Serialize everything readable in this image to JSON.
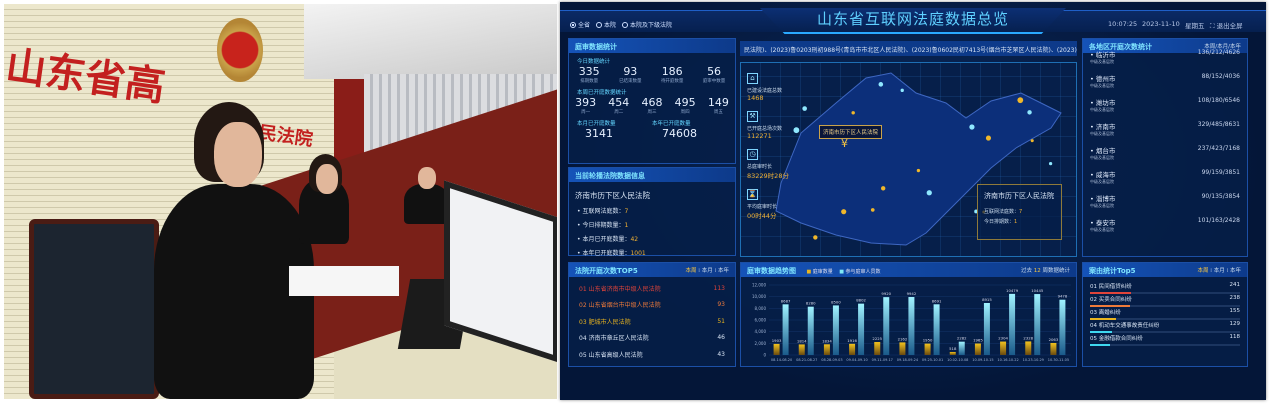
{
  "photo": {
    "wall_text_left": "山东省高",
    "wall_text_right": "民法院"
  },
  "header": {
    "title": "山东省互联网法庭数据总览",
    "scope_options": [
      {
        "label": "全省",
        "selected": true
      },
      {
        "label": "本院",
        "selected": false
      },
      {
        "label": "本院及下级法院",
        "selected": false
      }
    ],
    "time": "10:07:25",
    "date": "2023-11-10",
    "weekday": "星期五",
    "exit_fullscreen": "退出全屏"
  },
  "trial_stats": {
    "title": "庭审数据统计",
    "today_label": "今日数据统计",
    "today": [
      {
        "value": "335",
        "label": "排期数量"
      },
      {
        "value": "93",
        "label": "已结束数量"
      },
      {
        "value": "186",
        "label": "待开庭数量"
      },
      {
        "value": "56",
        "label": "庭审中数量"
      }
    ],
    "week_label": "本周已开庭数据统计",
    "week": [
      {
        "value": "393",
        "label": "周一"
      },
      {
        "value": "454",
        "label": "周二"
      },
      {
        "value": "468",
        "label": "周三"
      },
      {
        "value": "495",
        "label": "周四"
      },
      {
        "value": "149",
        "label": "周五"
      }
    ],
    "month_label": "本月已开庭数量",
    "month_value": "3141",
    "year_label": "本年已开庭数量",
    "year_value": "74608"
  },
  "court_info": {
    "title": "当前轮播法院数据信息",
    "court": "济南市历下区人民法院",
    "items": [
      {
        "label": "互联网法庭数：",
        "value": "7"
      },
      {
        "label": "今日排期数量：",
        "value": "1"
      },
      {
        "label": "本月已开庭数量：",
        "value": "42"
      },
      {
        "label": "本年已开庭数量：",
        "value": "1001"
      }
    ]
  },
  "court_top5": {
    "title": "法院开庭次数TOP5",
    "tabs": [
      "本周",
      "本月",
      "本年"
    ],
    "active_tab": "本周",
    "items": [
      {
        "rank": "01",
        "name": "山东省济南市中级人民法院",
        "value": "113",
        "color": "#e0443a"
      },
      {
        "rank": "02",
        "name": "山东省烟台市中级人民法院",
        "value": "93",
        "color": "#ee7a3a"
      },
      {
        "rank": "03",
        "name": "肥城市人民法院",
        "value": "51",
        "color": "#e8b420"
      },
      {
        "rank": "04",
        "name": "济南市章丘区人民法院",
        "value": "46",
        "color": "#d8e4f4"
      },
      {
        "rank": "05",
        "name": "山东省高级人民法院",
        "value": "43",
        "color": "#d8e4f4"
      }
    ]
  },
  "ticker": "民法院)、(2023)鲁0203刑初988号(青岛市市北区人民法院)、(2023)鲁0602民初7413号(烟台市芝罘区人民法院)、(2023)",
  "map": {
    "stats": [
      {
        "icon": "courthouse-icon",
        "label": "已建设法庭总数",
        "value": "1468"
      },
      {
        "icon": "gavel-icon",
        "label": "已开庭总场次数",
        "value": "112271"
      },
      {
        "icon": "clock-icon",
        "label": "总庭审时长",
        "value": "83229时28分"
      },
      {
        "icon": "hourglass-icon",
        "label": "平均庭审时长",
        "value": "00时44分"
      }
    ],
    "tooltip": "济南市历下区人民法院",
    "info": {
      "court": "济南市历下区人民法院",
      "items": [
        {
          "label": "互联网法庭数：",
          "value": "7"
        },
        {
          "label": "今日排期数：",
          "value": "1"
        }
      ]
    }
  },
  "region_stats": {
    "title": "各地区开庭次数统计",
    "tabs": "本周/本月/本年",
    "subtitle": "中级及基层院",
    "items": [
      {
        "city": "临沂市",
        "value": "136/212/4626"
      },
      {
        "city": "德州市",
        "value": "88/152/4036"
      },
      {
        "city": "潍坊市",
        "value": "108/180/6546"
      },
      {
        "city": "济南市",
        "value": "329/485/8631"
      },
      {
        "city": "烟台市",
        "value": "237/423/7168"
      },
      {
        "city": "威海市",
        "value": "99/159/3851"
      },
      {
        "city": "淄博市",
        "value": "90/135/3854"
      },
      {
        "city": "泰安市",
        "value": "101/163/2428"
      }
    ]
  },
  "case_top5": {
    "title": "案由统计Top5",
    "tabs": [
      "本周",
      "本月",
      "本年"
    ],
    "active_tab": "本周",
    "items": [
      {
        "rank": "01",
        "name": "民间借贷纠纷",
        "value": 241,
        "color": "#e0443a"
      },
      {
        "rank": "02",
        "name": "买卖合同纠纷",
        "value": 238,
        "color": "#ee7a3a"
      },
      {
        "rank": "03",
        "name": "离婚纠纷",
        "value": 155,
        "color": "#e8b420"
      },
      {
        "rank": "04",
        "name": "机动车交通事故责任纠纷",
        "value": 129,
        "color": "#3fd8f0"
      },
      {
        "rank": "05",
        "name": "金融借款合同纠纷",
        "value": 118,
        "color": "#3fd8f0"
      }
    ]
  },
  "chart_data": {
    "type": "bar",
    "title": "庭审数据趋势图",
    "legend_position": "top",
    "period_prefix": "过去",
    "period_value": "12",
    "period_suffix": "周数据统计",
    "categories": [
      "08.14-08.20",
      "08.21-08.27",
      "08.28-09.03",
      "09.04-09.10",
      "09.11-09.17",
      "09.18-09.24",
      "09.25-10.01",
      "10.02-10.08",
      "10.09-10.15",
      "10.16-10.22",
      "10.23-10.29",
      "10.30-11.05"
    ],
    "series": [
      {
        "name": "庭审数量",
        "color": "#e8b420",
        "values": [
          1903,
          1814,
          1834,
          1916,
          2225,
          2162,
          1950,
          518,
          1965,
          2304,
          2328,
          2063
        ]
      },
      {
        "name": "参与庭审人员数",
        "color": "#7fe8f4",
        "values": [
          8687,
          8280,
          8500,
          8802,
          9920,
          9942,
          8691,
          2282,
          8915,
          10479,
          10445,
          9478
        ]
      }
    ],
    "ylim": [
      0,
      12000
    ],
    "yticks": [
      "0",
      "2,000",
      "4,000",
      "6,000",
      "8,000",
      "10,000",
      "12,000"
    ],
    "grid": true
  }
}
